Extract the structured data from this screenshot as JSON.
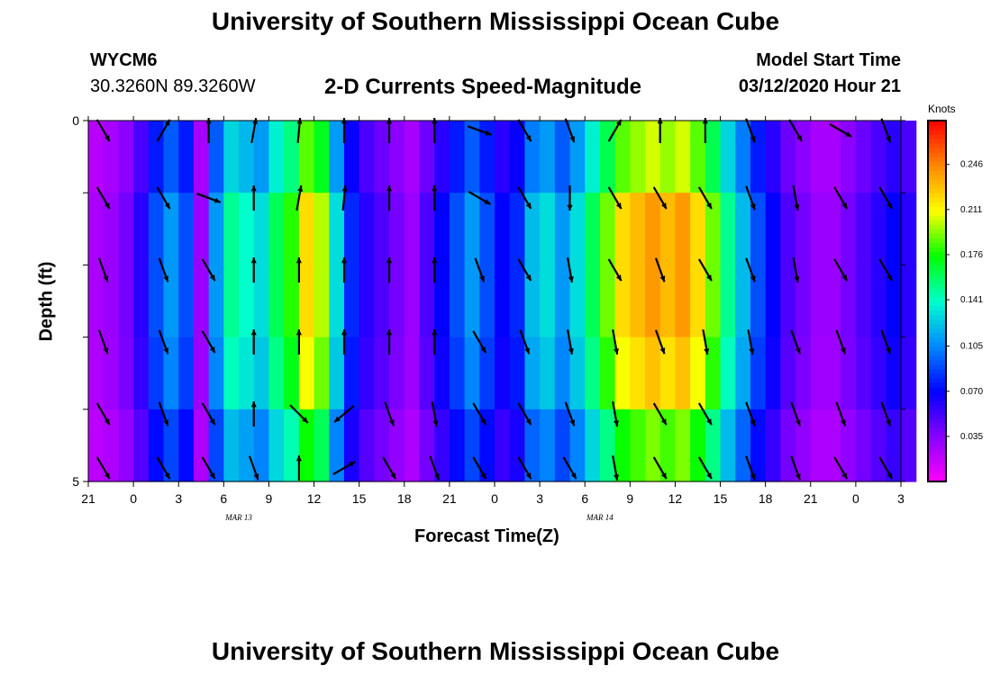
{
  "header": {
    "title": "University of Southern Mississippi Ocean Cube",
    "station_id": "WYCM6",
    "station_coords": "30.3260N 89.3260W",
    "plot_title": "2-D Currents Speed-Magnitude",
    "model_start_label": "Model Start Time",
    "model_start_value": "03/12/2020 Hour 21"
  },
  "footer": {
    "title": "University of Southern Mississippi Ocean Cube"
  },
  "chart_data": {
    "type": "heatmap",
    "title": "2-D Currents Speed-Magnitude",
    "xlabel": "Forecast Time(Z)",
    "ylabel": "Depth (ft)",
    "x_tick_labels": [
      "21",
      "0",
      "3",
      "6",
      "9",
      "12",
      "15",
      "18",
      "21",
      "0",
      "3",
      "6",
      "9",
      "12",
      "15",
      "18",
      "21",
      "0",
      "3"
    ],
    "x_date_labels": [
      {
        "label": "MAR  13",
        "at_hour": 10
      },
      {
        "label": "MAR  14",
        "at_hour": 34
      }
    ],
    "x_hours_range": [
      0,
      54
    ],
    "y_tick_labels": [
      "0",
      "5"
    ],
    "ylim": [
      0,
      5
    ],
    "y_layers": 5,
    "colorbar": {
      "unit": "Knots",
      "min": 0.0,
      "max": 0.28,
      "tick_values": [
        0.035,
        0.07,
        0.105,
        0.141,
        0.176,
        0.211,
        0.246
      ],
      "tick_labels": [
        "0.035",
        "0.070",
        "0.105",
        "0.141",
        "0.176",
        "0.211",
        "0.246"
      ]
    },
    "colors": [
      "#ff00ff",
      "#8800ff",
      "#0000ff",
      "#0088ff",
      "#00ffcc",
      "#00ff00",
      "#ffff00",
      "#ff8800",
      "#ff0000"
    ],
    "profile_mid_layer": [
      0.025,
      0.03,
      0.04,
      0.06,
      0.09,
      0.11,
      0.09,
      0.03,
      0.11,
      0.15,
      0.14,
      0.13,
      0.16,
      0.18,
      0.22,
      0.2,
      0.13,
      0.08,
      0.06,
      0.05,
      0.04,
      0.03,
      0.05,
      0.07,
      0.09,
      0.11,
      0.09,
      0.07,
      0.08,
      0.12,
      0.13,
      0.11,
      0.13,
      0.16,
      0.19,
      0.22,
      0.23,
      0.24,
      0.23,
      0.24,
      0.22,
      0.19,
      0.15,
      0.12,
      0.09,
      0.07,
      0.05,
      0.04,
      0.03,
      0.03,
      0.04,
      0.05,
      0.06,
      0.07,
      0.06
    ],
    "layer_scale": [
      0.85,
      1.0,
      1.0,
      0.95,
      0.8
    ],
    "arrows_hours": [
      1,
      5,
      8,
      11,
      14,
      17,
      20,
      23,
      26,
      29,
      32,
      35,
      38,
      41,
      44,
      47,
      50,
      53
    ],
    "arrow_angle_deg": [
      [
        150,
        30,
        0,
        10,
        5,
        0,
        0,
        0,
        110,
        150,
        160,
        30,
        0,
        0,
        160,
        150,
        120,
        160
      ],
      [
        150,
        150,
        110,
        0,
        10,
        5,
        0,
        0,
        120,
        150,
        180,
        150,
        150,
        150,
        160,
        170,
        150,
        150
      ],
      [
        160,
        160,
        150,
        0,
        0,
        0,
        0,
        0,
        160,
        150,
        170,
        150,
        160,
        150,
        160,
        170,
        150,
        150
      ],
      [
        160,
        160,
        150,
        0,
        0,
        0,
        0,
        0,
        150,
        160,
        170,
        170,
        160,
        170,
        170,
        160,
        160,
        160
      ],
      [
        150,
        160,
        150,
        0,
        135,
        230,
        160,
        170,
        150,
        150,
        160,
        170,
        150,
        150,
        160,
        160,
        160,
        160
      ],
      [
        150,
        150,
        150,
        160,
        0,
        60,
        150,
        160,
        150,
        150,
        150,
        170,
        150,
        150,
        160,
        160,
        150,
        150
      ]
    ]
  }
}
